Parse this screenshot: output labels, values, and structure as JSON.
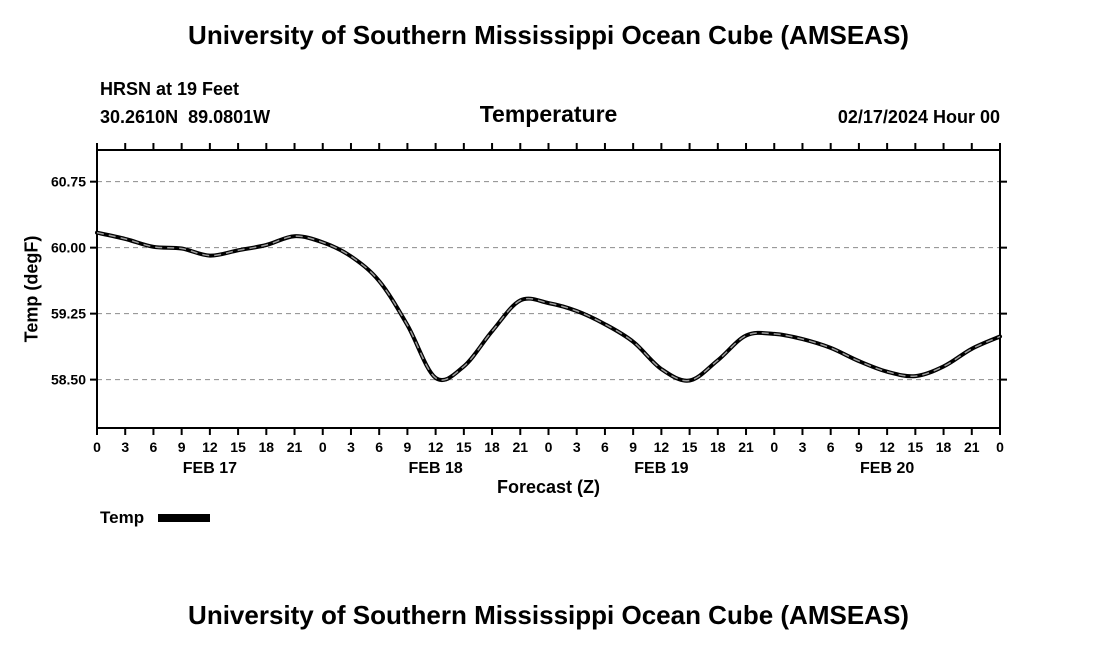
{
  "page": {
    "top_title": "University of Southern Mississippi Ocean Cube (AMSEAS)",
    "bottom_title": "University of Southern Mississippi Ocean Cube (AMSEAS)"
  },
  "header": {
    "station": "HRSN at 19 Feet",
    "coordinates": "30.2610N  89.0801W",
    "plot_title": "Temperature",
    "datetime": "02/17/2024 Hour 00"
  },
  "legend": {
    "label": "Temp",
    "color": "#000000"
  },
  "chart_data": {
    "type": "line",
    "title": "Temperature",
    "xlabel": "Forecast (Z)",
    "ylabel": "Temp (degF)",
    "ylim": [
      57.95,
      61.11
    ],
    "xlim_hours": [
      0,
      96
    ],
    "grid": "horizontal-dashed",
    "grid_color": "#8c8c8c",
    "line_color": "#000000",
    "legend_position": "bottom-left",
    "y_ticks": [
      58.5,
      59.25,
      60.0,
      60.75
    ],
    "y_tick_labels": [
      "58.50",
      "59.25",
      "60.00",
      "60.75"
    ],
    "x_tick_step_hours": 3,
    "x_tick_labels": [
      "0",
      "3",
      "6",
      "9",
      "12",
      "15",
      "18",
      "21",
      "0",
      "3",
      "6",
      "9",
      "12",
      "15",
      "18",
      "21",
      "0",
      "3",
      "6",
      "9",
      "12",
      "15",
      "18",
      "21",
      "0",
      "3",
      "6",
      "9",
      "12",
      "15",
      "18",
      "21",
      "0"
    ],
    "day_labels": [
      "FEB 17",
      "FEB 18",
      "FEB 19",
      "FEB 20"
    ],
    "series": [
      {
        "name": "Temp",
        "x_hours": [
          0,
          3,
          6,
          9,
          12,
          15,
          18,
          21,
          24,
          27,
          30,
          33,
          36,
          39,
          42,
          45,
          48,
          51,
          54,
          57,
          60,
          63,
          66,
          69,
          72,
          75,
          78,
          81,
          84,
          87,
          90,
          93,
          96
        ],
        "values": [
          60.17,
          60.1,
          60.01,
          59.99,
          59.91,
          59.97,
          60.03,
          60.13,
          60.06,
          59.9,
          59.62,
          59.12,
          58.52,
          58.65,
          59.05,
          59.4,
          59.37,
          59.28,
          59.13,
          58.93,
          58.62,
          58.49,
          58.72,
          59.0,
          59.02,
          58.96,
          58.86,
          58.71,
          58.59,
          58.54,
          58.65,
          58.85,
          58.99
        ]
      }
    ]
  }
}
